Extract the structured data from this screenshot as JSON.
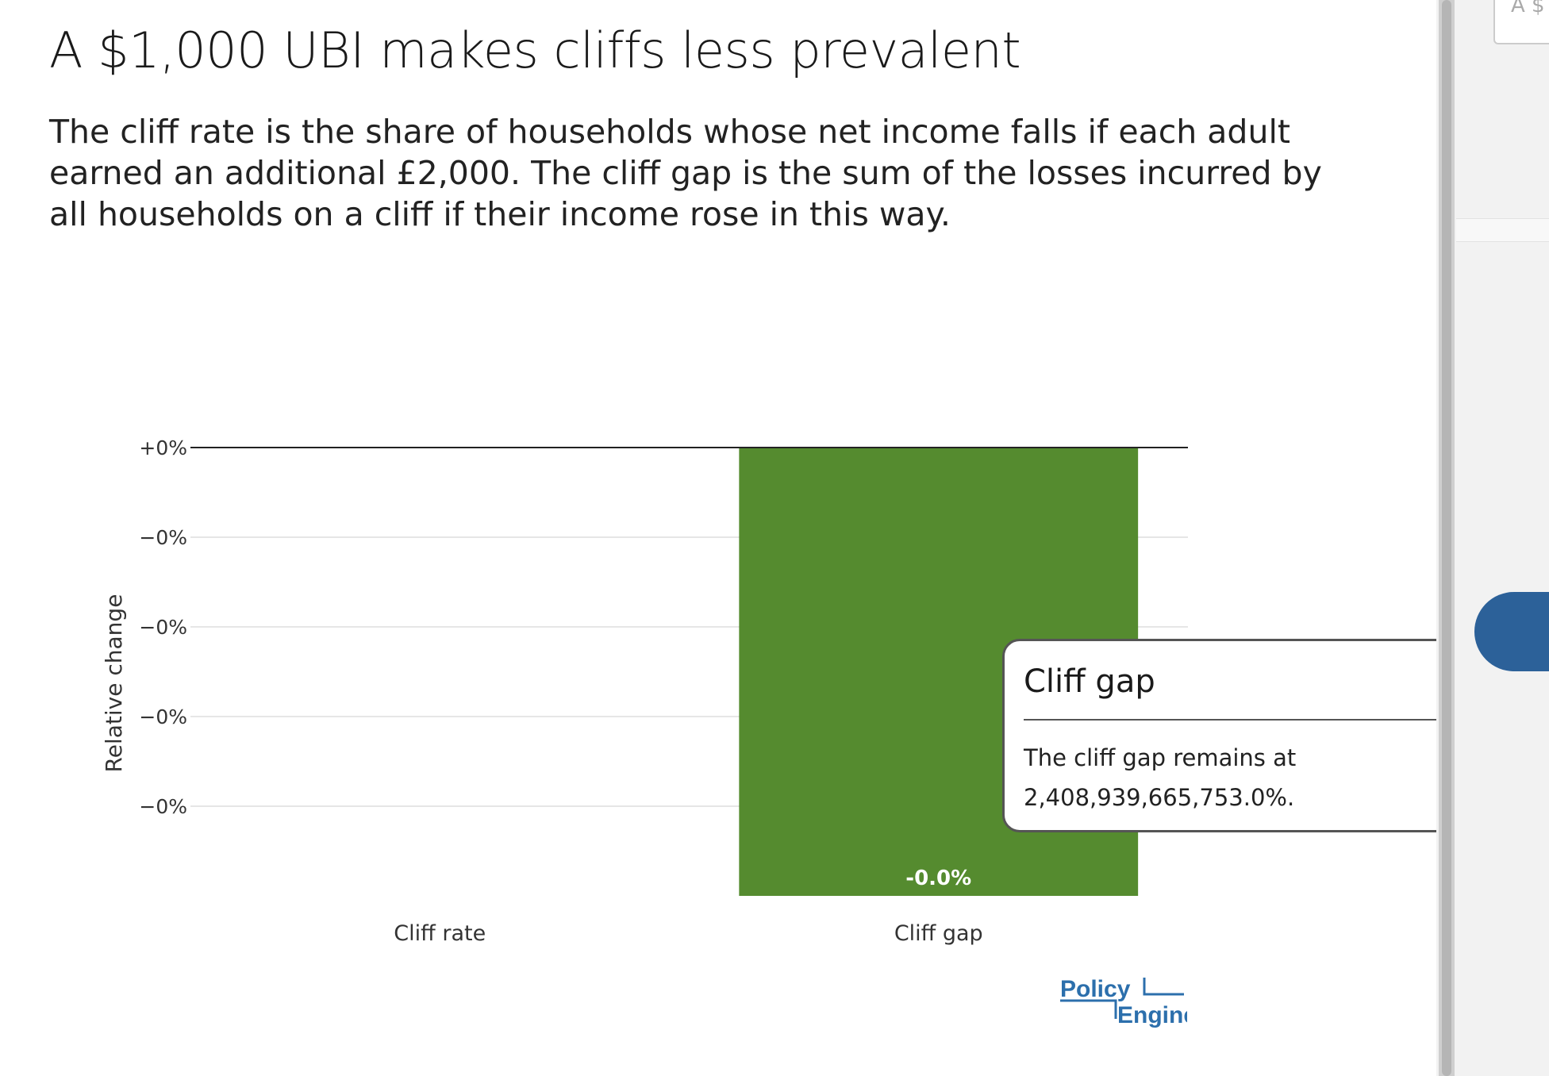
{
  "title": "A $1,000 UBI makes cliffs less prevalent",
  "subtitle": "The cliff rate is the share of households whose net income falls if each adult earned an additional £2,000. The cliff gap is the sum of the losses incurred by all households on a cliff if their income rose in this way.",
  "chart_data": {
    "type": "bar",
    "categories": [
      "Cliff rate",
      "Cliff gap"
    ],
    "values": [
      0,
      -1e-07
    ],
    "bar_labels": [
      "",
      "-0.0%"
    ],
    "ylabel": "Relative change",
    "yticks": [
      {
        "value": 0,
        "label": "+0%"
      },
      {
        "value": -2e-08,
        "label": "−0%"
      },
      {
        "value": -4e-08,
        "label": "−0%"
      },
      {
        "value": -6e-08,
        "label": "−0%"
      },
      {
        "value": -8e-08,
        "label": "−0%"
      }
    ],
    "ylim": [
      -1e-07,
      0
    ],
    "grid": true,
    "bar_color": "#558b2f",
    "zero_line_color": "#222222"
  },
  "tooltip": {
    "title": "Cliff gap",
    "body": "The cliff gap remains at 2,408,939,665,753.0%."
  },
  "logo": {
    "line1": "Policy",
    "line2": "Engine",
    "color": "#2c6fac"
  },
  "side_panel": {
    "card_text": "A $"
  }
}
